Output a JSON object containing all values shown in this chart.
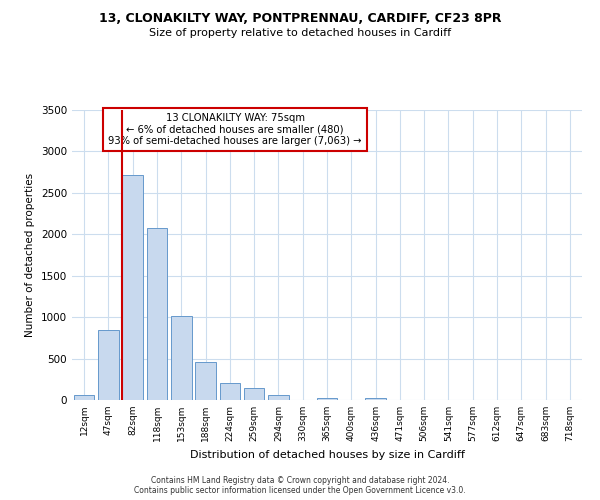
{
  "title1": "13, CLONAKILTY WAY, PONTPRENNAU, CARDIFF, CF23 8PR",
  "title2": "Size of property relative to detached houses in Cardiff",
  "xlabel": "Distribution of detached houses by size in Cardiff",
  "ylabel": "Number of detached properties",
  "bar_labels": [
    "12sqm",
    "47sqm",
    "82sqm",
    "118sqm",
    "153sqm",
    "188sqm",
    "224sqm",
    "259sqm",
    "294sqm",
    "330sqm",
    "365sqm",
    "400sqm",
    "436sqm",
    "471sqm",
    "506sqm",
    "541sqm",
    "577sqm",
    "612sqm",
    "647sqm",
    "683sqm",
    "718sqm"
  ],
  "bar_values": [
    55,
    850,
    2720,
    2070,
    1010,
    455,
    205,
    145,
    55,
    0,
    25,
    0,
    20,
    0,
    0,
    0,
    0,
    0,
    0,
    0,
    0
  ],
  "bar_color": "#c8d9ee",
  "bar_edge_color": "#6699cc",
  "ylim": [
    0,
    3500
  ],
  "yticks": [
    0,
    500,
    1000,
    1500,
    2000,
    2500,
    3000,
    3500
  ],
  "property_line_color": "#cc0000",
  "annotation_title": "13 CLONAKILTY WAY: 75sqm",
  "annotation_line1": "← 6% of detached houses are smaller (480)",
  "annotation_line2": "93% of semi-detached houses are larger (7,063) →",
  "annotation_box_color": "#cc0000",
  "footer1": "Contains HM Land Registry data © Crown copyright and database right 2024.",
  "footer2": "Contains public sector information licensed under the Open Government Licence v3.0.",
  "background_color": "#ffffff",
  "grid_color": "#ccddee"
}
